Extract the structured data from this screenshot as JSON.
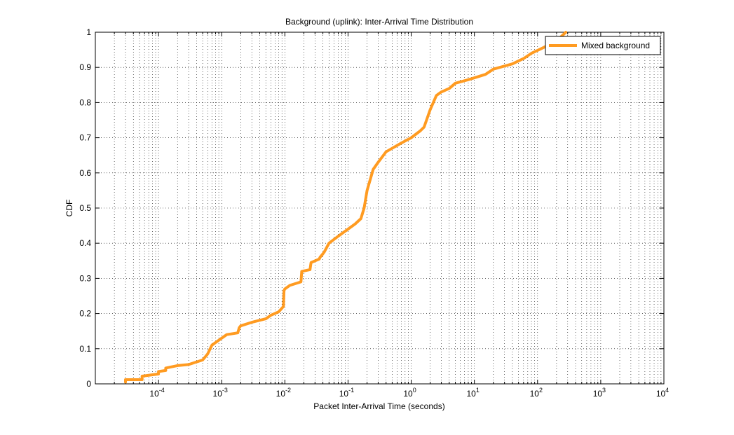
{
  "chart_data": {
    "type": "line",
    "title": "Background (uplink): Inter-Arrival Time Distribution",
    "xlabel": "Packet Inter-Arrival Time (seconds)",
    "ylabel": "CDF",
    "xscale": "log",
    "xlim": [
      1e-05,
      10000
    ],
    "ylim": [
      0,
      1
    ],
    "grid": true,
    "legend_position": "top-right",
    "x_tick_labels": [
      {
        "base": "10",
        "exp": "-4",
        "value": 0.0001
      },
      {
        "base": "10",
        "exp": "-3",
        "value": 0.001
      },
      {
        "base": "10",
        "exp": "-2",
        "value": 0.01
      },
      {
        "base": "10",
        "exp": "-1",
        "value": 0.1
      },
      {
        "base": "10",
        "exp": "0",
        "value": 1
      },
      {
        "base": "10",
        "exp": "1",
        "value": 10
      },
      {
        "base": "10",
        "exp": "2",
        "value": 100
      },
      {
        "base": "10",
        "exp": "3",
        "value": 1000
      },
      {
        "base": "10",
        "exp": "4",
        "value": 10000
      }
    ],
    "y_tick_labels": [
      "0",
      "0.1",
      "0.2",
      "0.3",
      "0.4",
      "0.5",
      "0.6",
      "0.7",
      "0.8",
      "0.9",
      "1"
    ],
    "series": [
      {
        "name": "Mixed background",
        "color": "#ff9b21",
        "x": [
          3e-05,
          3e-05,
          5.5e-05,
          5.5e-05,
          0.0001,
          0.0001,
          0.00013,
          0.00013,
          0.0002,
          0.0003,
          0.0005,
          0.0006,
          0.0007,
          0.001,
          0.0012,
          0.0018,
          0.0019,
          0.002,
          0.003,
          0.005,
          0.006,
          0.008,
          0.0095,
          0.0097,
          0.01,
          0.012,
          0.018,
          0.0185,
          0.025,
          0.026,
          0.035,
          0.036,
          0.04,
          0.042,
          0.05,
          0.07,
          0.1,
          0.13,
          0.16,
          0.18,
          0.2,
          0.25,
          0.3,
          0.4,
          0.5,
          0.7,
          1,
          1.4,
          1.6,
          2,
          2.5,
          3,
          4,
          5,
          8,
          15,
          20,
          40,
          60,
          80,
          120,
          200,
          280
        ],
        "values": [
          0.005,
          0.012,
          0.012,
          0.022,
          0.028,
          0.035,
          0.038,
          0.045,
          0.052,
          0.055,
          0.068,
          0.085,
          0.11,
          0.13,
          0.14,
          0.145,
          0.16,
          0.165,
          0.175,
          0.185,
          0.195,
          0.205,
          0.22,
          0.265,
          0.27,
          0.28,
          0.29,
          0.32,
          0.325,
          0.345,
          0.355,
          0.36,
          0.37,
          0.375,
          0.4,
          0.42,
          0.44,
          0.455,
          0.47,
          0.5,
          0.55,
          0.61,
          0.63,
          0.66,
          0.67,
          0.685,
          0.7,
          0.72,
          0.73,
          0.78,
          0.82,
          0.83,
          0.84,
          0.855,
          0.865,
          0.88,
          0.895,
          0.91,
          0.925,
          0.94,
          0.955,
          0.975,
          1.0
        ]
      }
    ]
  }
}
